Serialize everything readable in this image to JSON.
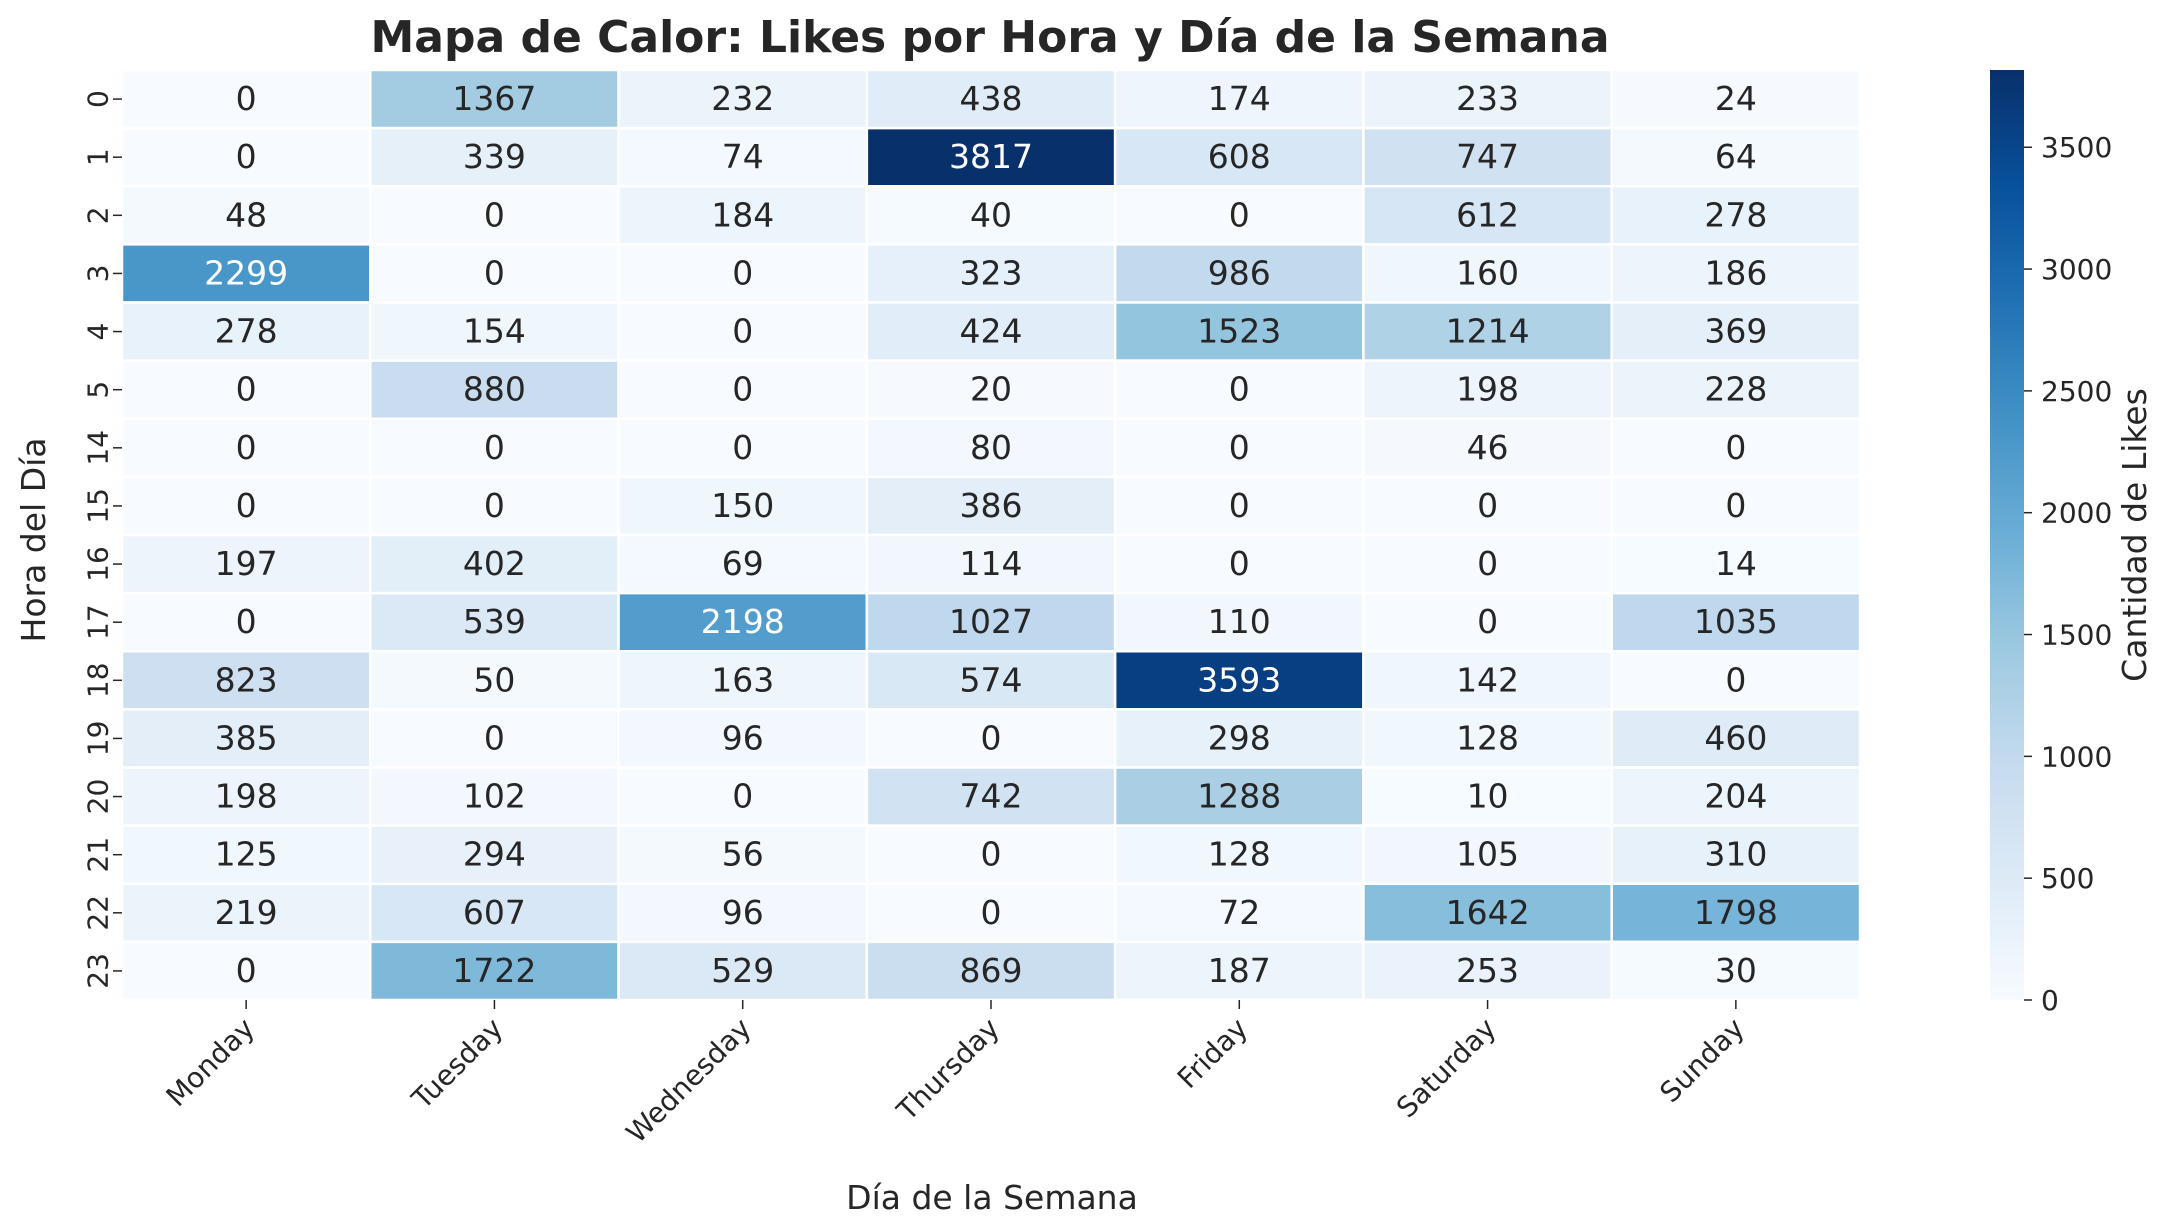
{
  "chart_data": {
    "type": "heatmap",
    "title": "Mapa de Calor: Likes por Hora y Día de la Semana",
    "xlabel": "Día de la Semana",
    "ylabel": "Hora del Día",
    "colorbar_label": "Cantidad de Likes",
    "colormap": "Blues",
    "vmin": 0,
    "vmax": 3817,
    "colorbar_ticks": [
      0,
      500,
      1000,
      1500,
      2000,
      2500,
      3000,
      3500
    ],
    "columns": [
      "Monday",
      "Tuesday",
      "Wednesday",
      "Thursday",
      "Friday",
      "Saturday",
      "Sunday"
    ],
    "rows": [
      "0",
      "1",
      "2",
      "3",
      "4",
      "5",
      "14",
      "15",
      "16",
      "17",
      "18",
      "19",
      "20",
      "21",
      "22",
      "23"
    ],
    "values": [
      [
        0,
        1367,
        232,
        438,
        174,
        233,
        24
      ],
      [
        0,
        339,
        74,
        3817,
        608,
        747,
        64
      ],
      [
        48,
        0,
        184,
        40,
        0,
        612,
        278
      ],
      [
        2299,
        0,
        0,
        323,
        986,
        160,
        186
      ],
      [
        278,
        154,
        0,
        424,
        1523,
        1214,
        369
      ],
      [
        0,
        880,
        0,
        20,
        0,
        198,
        228
      ],
      [
        0,
        0,
        0,
        80,
        0,
        46,
        0
      ],
      [
        0,
        0,
        150,
        386,
        0,
        0,
        0
      ],
      [
        197,
        402,
        69,
        114,
        0,
        0,
        14
      ],
      [
        0,
        539,
        2198,
        1027,
        110,
        0,
        1035
      ],
      [
        823,
        50,
        163,
        574,
        3593,
        142,
        0
      ],
      [
        385,
        0,
        96,
        0,
        298,
        128,
        460
      ],
      [
        198,
        102,
        0,
        742,
        1288,
        10,
        204
      ],
      [
        125,
        294,
        56,
        0,
        128,
        105,
        310
      ],
      [
        219,
        607,
        96,
        0,
        72,
        1642,
        1798
      ],
      [
        0,
        1722,
        529,
        869,
        187,
        253,
        30
      ]
    ]
  }
}
